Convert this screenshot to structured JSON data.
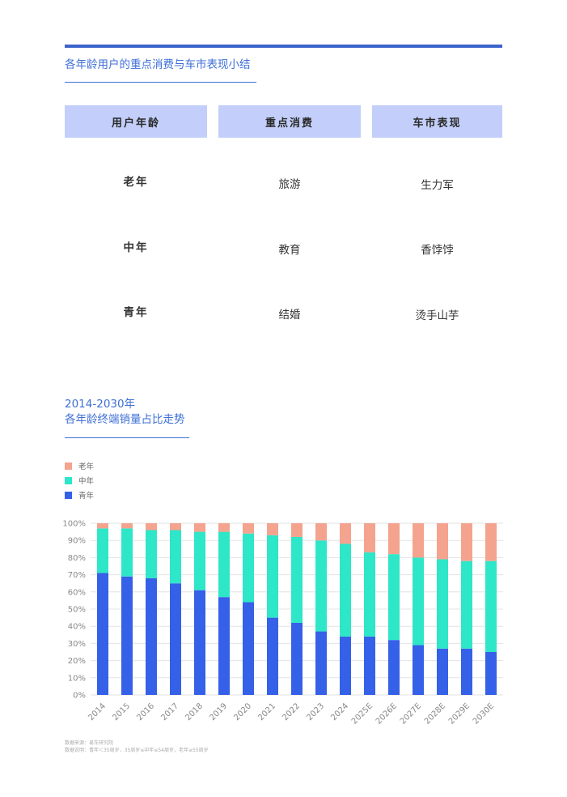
{
  "table": {
    "title": "各年龄用户的重点消费与车市表现小结",
    "headers": [
      "用户年龄",
      "重点消费",
      "车市表现"
    ],
    "rows": [
      {
        "age": "老年",
        "spend": "旅游",
        "market": "生力军"
      },
      {
        "age": "中年",
        "spend": "教育",
        "market": "香饽饽"
      },
      {
        "age": "青年",
        "spend": "结婚",
        "market": "烫手山芋"
      }
    ]
  },
  "chart": {
    "title_line1": "2014-2030年",
    "title_line2": "各年龄终端销量占比走势"
  },
  "chart_data": {
    "type": "bar",
    "stacked": true,
    "categories": [
      "2014",
      "2015",
      "2016",
      "2017",
      "2018",
      "2019",
      "2020",
      "2021",
      "2022",
      "2023",
      "2024",
      "2025E",
      "2026E",
      "2027E",
      "2028E",
      "2029E",
      "2030E"
    ],
    "y_tick_labels": [
      "0%",
      "10%",
      "20%",
      "30%",
      "40%",
      "50%",
      "60%",
      "70%",
      "80%",
      "90%",
      "100%"
    ],
    "ylim": [
      0,
      100
    ],
    "grid": true,
    "legend_position": "top-left",
    "series": [
      {
        "name": "青年",
        "color": "#3560e8",
        "values": [
          71,
          69,
          68,
          65,
          61,
          57,
          54,
          45,
          42,
          37,
          34,
          34,
          32,
          29,
          27,
          27,
          25
        ]
      },
      {
        "name": "中年",
        "color": "#2ee6c8",
        "values": [
          26,
          28,
          28,
          31,
          34,
          38,
          40,
          48,
          50,
          53,
          54,
          49,
          50,
          51,
          52,
          51,
          53
        ]
      },
      {
        "name": "老年",
        "color": "#f4a38f",
        "values": [
          3,
          3,
          4,
          4,
          5,
          5,
          6,
          7,
          8,
          10,
          12,
          17,
          18,
          20,
          21,
          22,
          22
        ]
      }
    ]
  },
  "footnote": {
    "line1": "数据来源：易车研究院",
    "line2": "数据说明：青年＜35周岁，35周岁≤中年≤54周岁，老年≥55周岁"
  }
}
